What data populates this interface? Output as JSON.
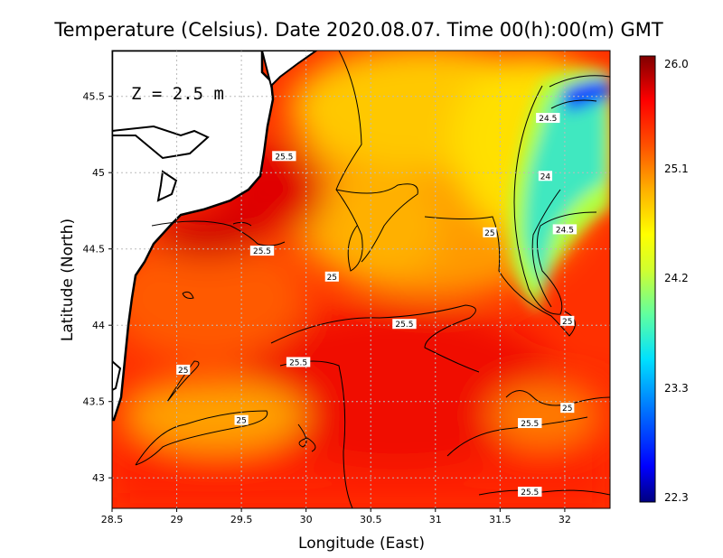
{
  "title": "Temperature (Celsius). Date 2020.08.07. Time 00(h):00(m) GMT",
  "depth_label": "Z = 2.5 m",
  "colors": {
    "land": "#ffffff",
    "coast": "#000000",
    "grid": "#bbbbbb"
  },
  "colorbar": {
    "min": 22.3,
    "max": 26.0,
    "labels": [
      "26.0",
      "25.1",
      "24.2",
      "23.3",
      "22.3"
    ],
    "colors": [
      "#000080",
      "#0000ff",
      "#00a0ff",
      "#00ffff",
      "#80ff80",
      "#ffff00",
      "#ffc000",
      "#ff6000",
      "#ff0000",
      "#c00000",
      "#800000"
    ]
  },
  "chart_data": {
    "type": "heatmap",
    "title": "Temperature (Celsius). Date 2020.08.07. Time 00(h):00(m) GMT",
    "xlabel": "Longitude (East)",
    "ylabel": "Latitude (North)",
    "xlim": [
      28.5,
      32.35
    ],
    "ylim": [
      42.8,
      45.8
    ],
    "x_ticks": [
      "28.5",
      "29",
      "29.5",
      "30",
      "30.5",
      "31",
      "31.5",
      "32"
    ],
    "y_ticks": [
      "43",
      "43.5",
      "44",
      "44.5",
      "45",
      "45.5"
    ],
    "grid": true,
    "value_range": [
      22.3,
      26.0
    ],
    "contour_labels": [
      {
        "text": "24.5",
        "lon": 31.87,
        "lat": 45.35
      },
      {
        "text": "24",
        "lon": 31.85,
        "lat": 44.97
      },
      {
        "text": "24.5",
        "lon": 32.0,
        "lat": 44.62
      },
      {
        "text": "25",
        "lon": 31.42,
        "lat": 44.6
      },
      {
        "text": "25.5",
        "lon": 29.83,
        "lat": 45.1
      },
      {
        "text": "25.5",
        "lon": 29.66,
        "lat": 44.48
      },
      {
        "text": "25",
        "lon": 30.2,
        "lat": 44.31
      },
      {
        "text": "25.5",
        "lon": 30.76,
        "lat": 44.0
      },
      {
        "text": "25",
        "lon": 32.02,
        "lat": 44.02
      },
      {
        "text": "25",
        "lon": 29.05,
        "lat": 43.7
      },
      {
        "text": "25.5",
        "lon": 29.94,
        "lat": 43.75
      },
      {
        "text": "25",
        "lon": 32.02,
        "lat": 43.45
      },
      {
        "text": "25",
        "lon": 29.5,
        "lat": 43.37
      },
      {
        "text": "25.5",
        "lon": 31.73,
        "lat": 43.35
      },
      {
        "text": "25.5",
        "lon": 31.73,
        "lat": 42.9
      }
    ]
  }
}
